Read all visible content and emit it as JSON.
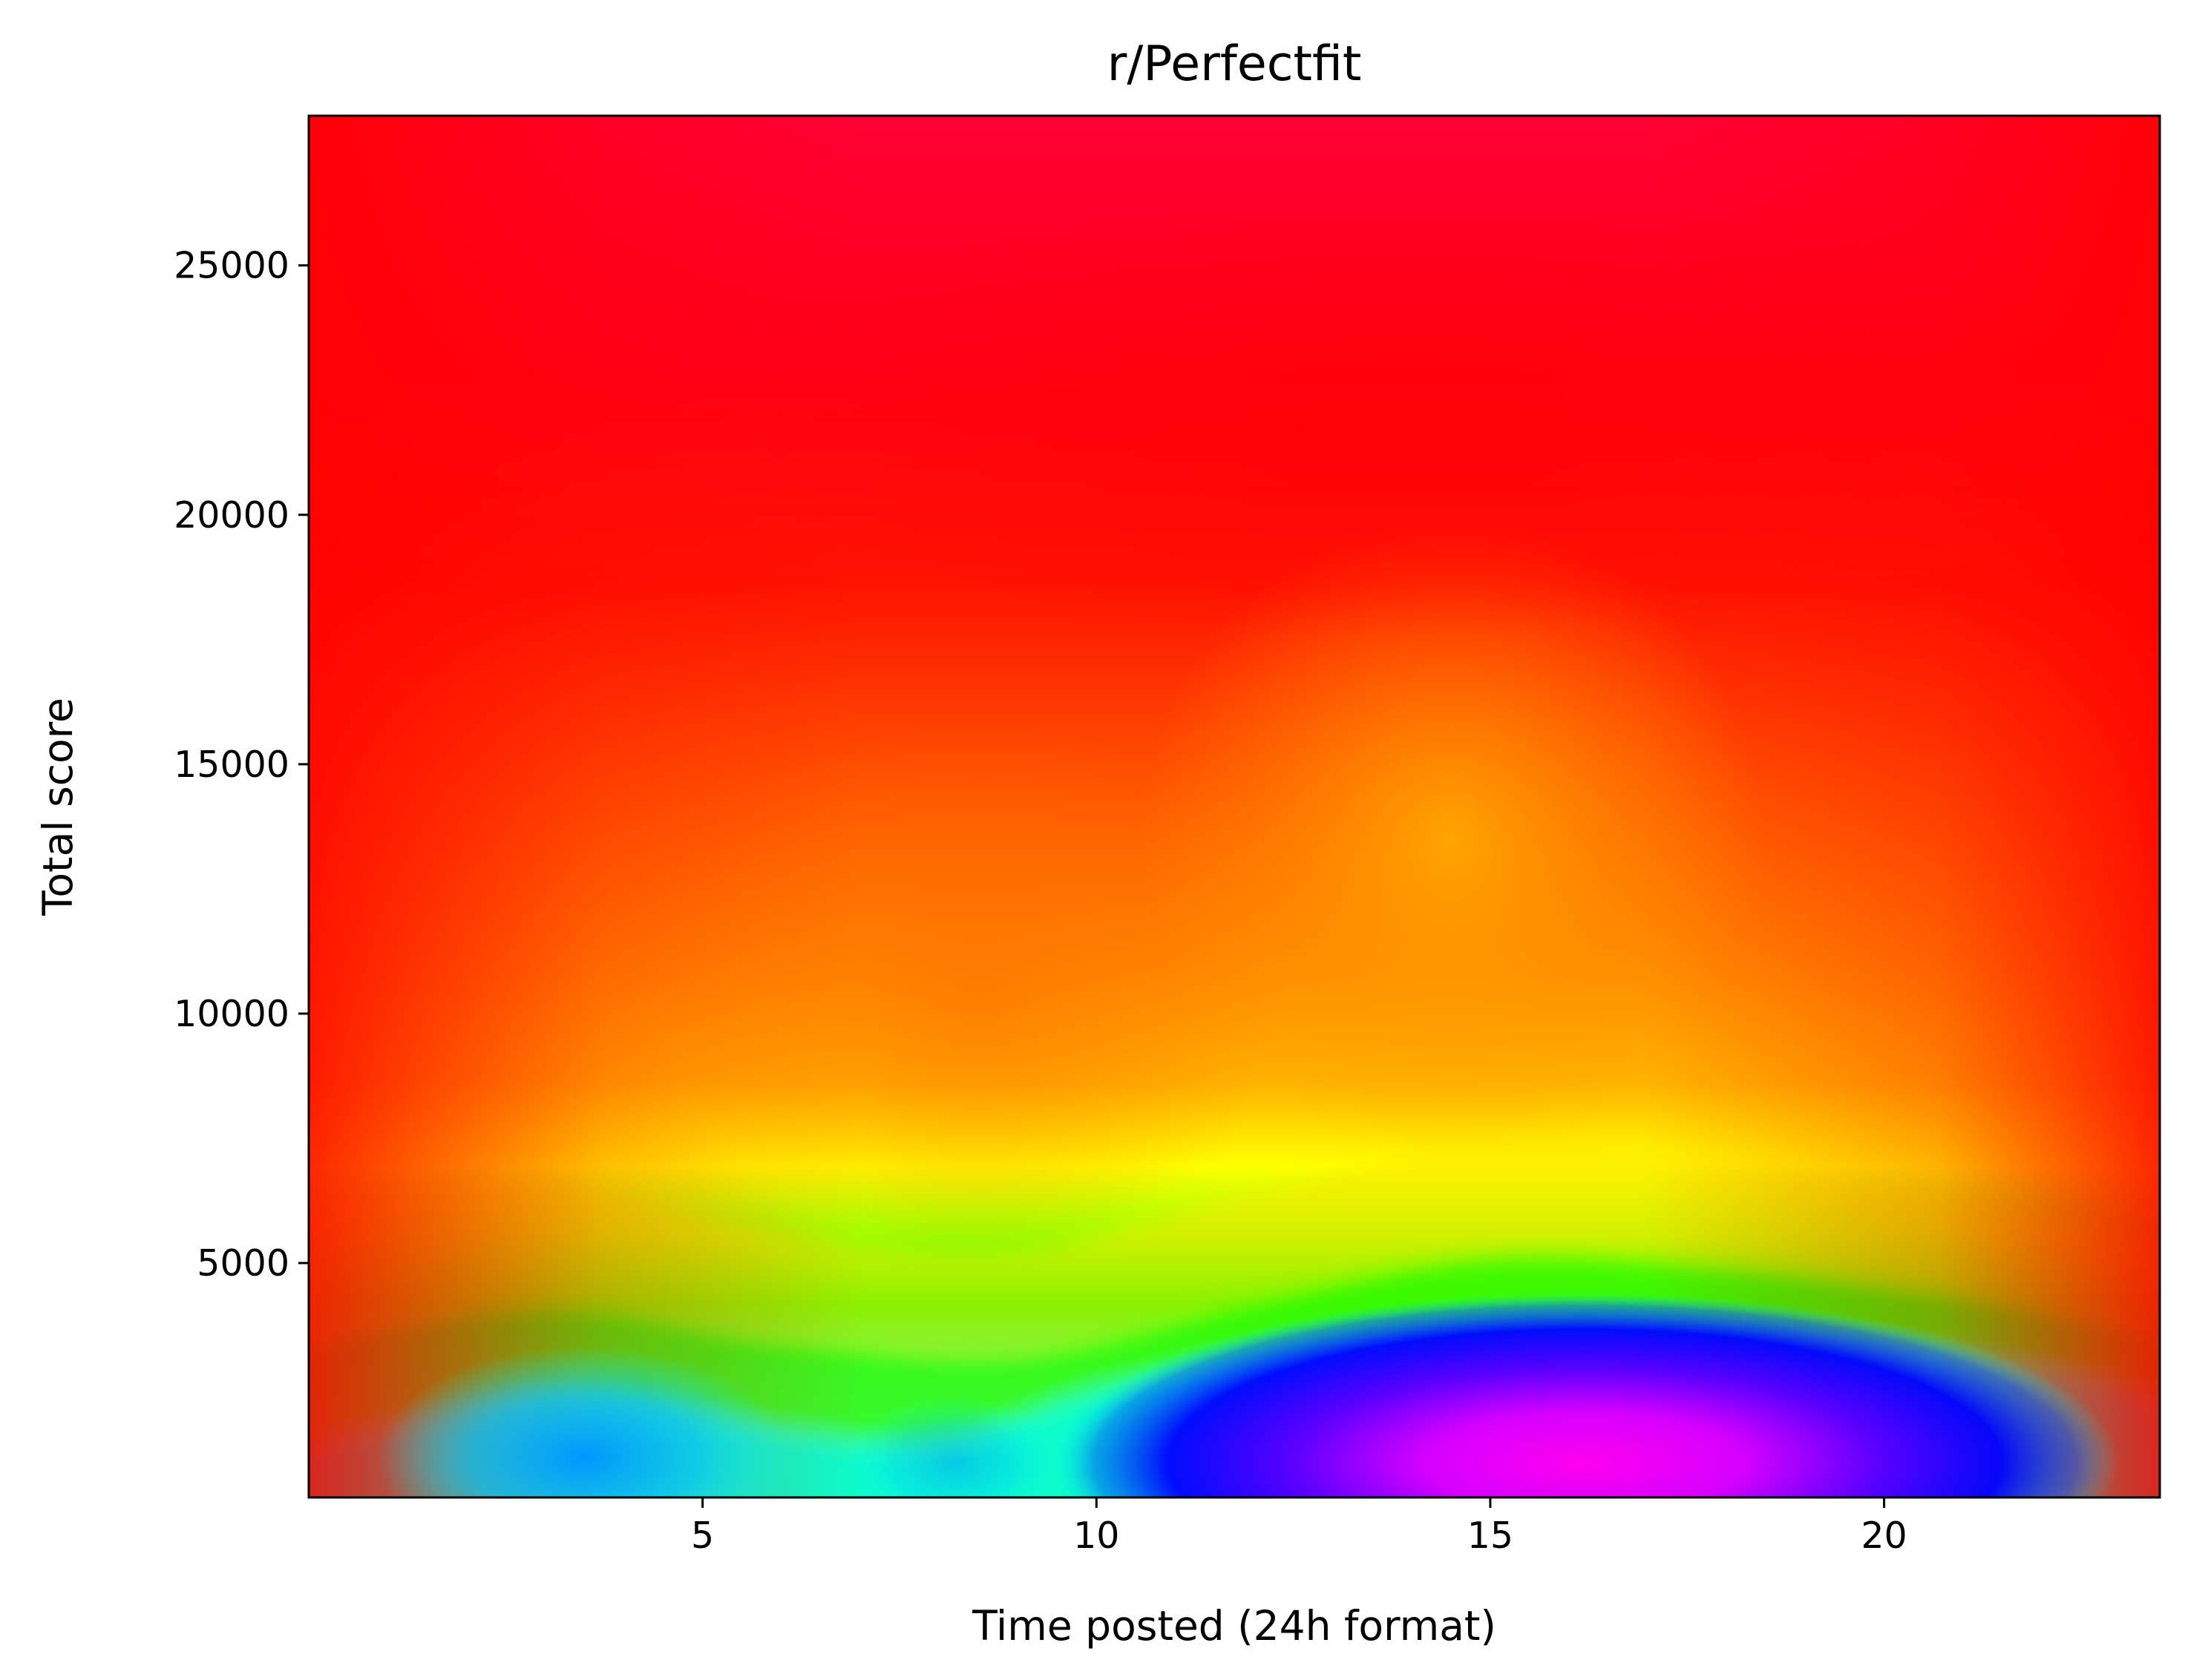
{
  "chart_data": {
    "type": "heatmap",
    "title": "r/Perfectfit",
    "xlabel": "Time posted (24h format)",
    "ylabel": "Total score",
    "xlim": [
      0,
      23.5
    ],
    "ylim": [
      300,
      28000
    ],
    "x_ticks": [
      5,
      10,
      15,
      20
    ],
    "y_ticks": [
      5000,
      10000,
      15000,
      20000,
      25000
    ],
    "colormap": "hsv",
    "grid": false,
    "legend": "none",
    "colors": {
      "red": "#ff0000",
      "orange": "#ff9a00",
      "yellow": "#ffff00",
      "green": "#00ff00",
      "cyan": "#00ffff",
      "blue": "#0000ff",
      "magenta": "#ff00ff",
      "crimson": "#ff0033"
    },
    "density_peaks": [
      {
        "x": 3.5,
        "y": 1100,
        "level": 0.6
      },
      {
        "x": 8.2,
        "y": 1000,
        "level": 0.47
      },
      {
        "x": 16.2,
        "y": 1000,
        "level": 0.84
      },
      {
        "x": 8.5,
        "y": 10500,
        "level": 0.06
      },
      {
        "x": 14.5,
        "y": 13500,
        "level": 0.1
      }
    ],
    "contour_levels": [
      {
        "name": "yellow",
        "points": [
          [
            0,
            6200
          ],
          [
            3,
            6600
          ],
          [
            6,
            5600
          ],
          [
            9,
            5300
          ],
          [
            12,
            6400
          ],
          [
            15,
            7400
          ],
          [
            18,
            7000
          ],
          [
            21,
            6300
          ],
          [
            23.5,
            5200
          ]
        ]
      },
      {
        "name": "green",
        "points": [
          [
            0,
            3400
          ],
          [
            3,
            4200
          ],
          [
            6,
            3500
          ],
          [
            9,
            3200
          ],
          [
            12,
            4300
          ],
          [
            15,
            5200
          ],
          [
            18,
            5000
          ],
          [
            21,
            4400
          ],
          [
            23.5,
            3600
          ]
        ]
      },
      {
        "name": "cyan",
        "points": [
          [
            0,
            1100
          ],
          [
            3,
            2200
          ],
          [
            6,
            1600
          ],
          [
            8,
            1300
          ],
          [
            10,
            2400
          ],
          [
            13,
            3400
          ],
          [
            16,
            3800
          ],
          [
            19,
            3500
          ],
          [
            22,
            2800
          ],
          [
            23.5,
            2000
          ]
        ]
      }
    ]
  }
}
